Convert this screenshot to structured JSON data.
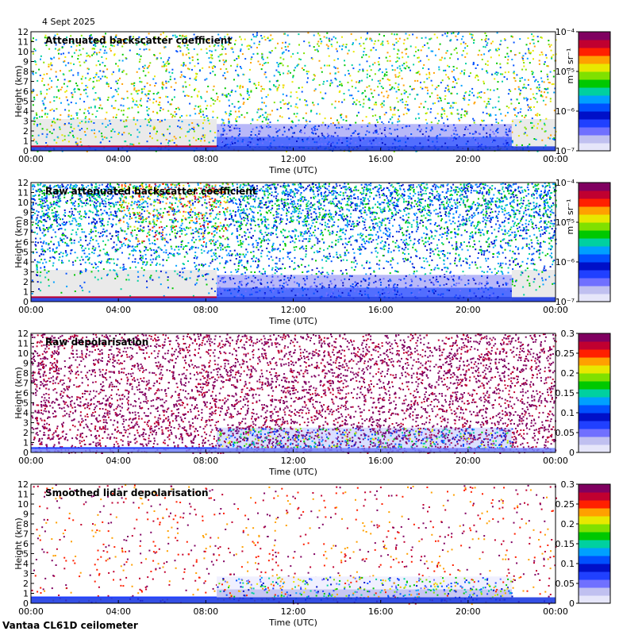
{
  "date": "4 Sept 2025",
  "footer": "Vantaa CL61D ceilometer",
  "colors": {
    "colormap": [
      "#e6e6fa",
      "#c0c0f0",
      "#7070ff",
      "#2040ff",
      "#0010c8",
      "#0050ff",
      "#00a0ff",
      "#00d0a0",
      "#00c800",
      "#80e000",
      "#e8e800",
      "#ffa000",
      "#ff2000",
      "#c00030",
      "#800060"
    ],
    "background_noise": "#d8d8d8"
  },
  "chart_data": [
    {
      "type": "heatmap",
      "title": "Attenuated backscatter coefficient",
      "xlabel": "Time (UTC)",
      "ylabel": "Height (km)",
      "x_ticks": [
        "00:00",
        "04:00",
        "08:00",
        "12:00",
        "16:00",
        "20:00",
        "00:00"
      ],
      "xlim_hours": [
        0,
        24
      ],
      "y_ticks": [
        0,
        1,
        2,
        3,
        4,
        5,
        6,
        7,
        8,
        9,
        10,
        11,
        12
      ],
      "ylim_km": [
        0,
        12
      ],
      "colorbar": {
        "scale": "log",
        "unit": "m⁻¹ sr⁻¹",
        "ticks": [
          "10⁻⁷",
          "10⁻⁶",
          "10⁻⁵",
          "10⁻⁴"
        ],
        "tick_values": [
          1e-07,
          1e-06,
          1e-05,
          0.0001
        ]
      },
      "features": {
        "surface_layer_top_km": 0.45,
        "cloud_start_hour": 8.5,
        "cloud_end_hour": 22.0,
        "cloud_top_km": 2.7
      }
    },
    {
      "type": "heatmap",
      "title": "Raw attenuated backscatter coefficient",
      "xlabel": "Time (UTC)",
      "ylabel": "Height (km)",
      "x_ticks": [
        "00:00",
        "04:00",
        "08:00",
        "12:00",
        "16:00",
        "20:00",
        "00:00"
      ],
      "xlim_hours": [
        0,
        24
      ],
      "y_ticks": [
        0,
        1,
        2,
        3,
        4,
        5,
        6,
        7,
        8,
        9,
        10,
        11,
        12
      ],
      "ylim_km": [
        0,
        12
      ],
      "colorbar": {
        "scale": "log",
        "unit": "m⁻¹ sr⁻¹",
        "ticks": [
          "10⁻⁷",
          "10⁻⁶",
          "10⁻⁵",
          "10⁻⁴"
        ],
        "tick_values": [
          1e-07,
          1e-06,
          1e-05,
          0.0001
        ]
      },
      "features": {
        "surface_layer_top_km": 0.45,
        "cloud_start_hour": 8.5,
        "cloud_end_hour": 22.0,
        "cloud_top_km": 2.7
      }
    },
    {
      "type": "heatmap",
      "title": "Raw depolarisation",
      "xlabel": "Time (UTC)",
      "ylabel": "Height (km)",
      "x_ticks": [
        "00:00",
        "04:00",
        "08:00",
        "12:00",
        "16:00",
        "20:00",
        "00:00"
      ],
      "xlim_hours": [
        0,
        24
      ],
      "y_ticks": [
        0,
        1,
        2,
        3,
        4,
        5,
        6,
        7,
        8,
        9,
        10,
        11,
        12
      ],
      "ylim_km": [
        0,
        12
      ],
      "colorbar": {
        "scale": "linear",
        "unit": "",
        "ticks": [
          "0",
          "0.05",
          "0.1",
          "0.15",
          "0.2",
          "0.25",
          "0.3"
        ],
        "tick_values": [
          0,
          0.05,
          0.1,
          0.15,
          0.2,
          0.25,
          0.3
        ]
      },
      "features": {
        "surface_layer_top_km": 0.45,
        "cloud_start_hour": 8.5,
        "cloud_end_hour": 22.0,
        "cloud_top_km": 2.5
      }
    },
    {
      "type": "heatmap",
      "title": "Smoothed lidar depolarisation",
      "xlabel": "Time (UTC)",
      "ylabel": "Height (km)",
      "x_ticks": [
        "00:00",
        "04:00",
        "08:00",
        "12:00",
        "16:00",
        "20:00",
        "00:00"
      ],
      "xlim_hours": [
        0,
        24
      ],
      "y_ticks": [
        0,
        1,
        2,
        3,
        4,
        5,
        6,
        7,
        8,
        9,
        10,
        11,
        12
      ],
      "ylim_km": [
        0,
        12
      ],
      "colorbar": {
        "scale": "linear",
        "unit": "",
        "ticks": [
          "0",
          "0.05",
          "0.1",
          "0.15",
          "0.2",
          "0.25",
          "0.3"
        ],
        "tick_values": [
          0,
          0.05,
          0.1,
          0.15,
          0.2,
          0.25,
          0.3
        ]
      },
      "features": {
        "surface_layer_top_km": 0.6,
        "cloud_start_hour": 8.5,
        "cloud_end_hour": 22.0,
        "cloud_top_km": 2.7
      }
    }
  ]
}
